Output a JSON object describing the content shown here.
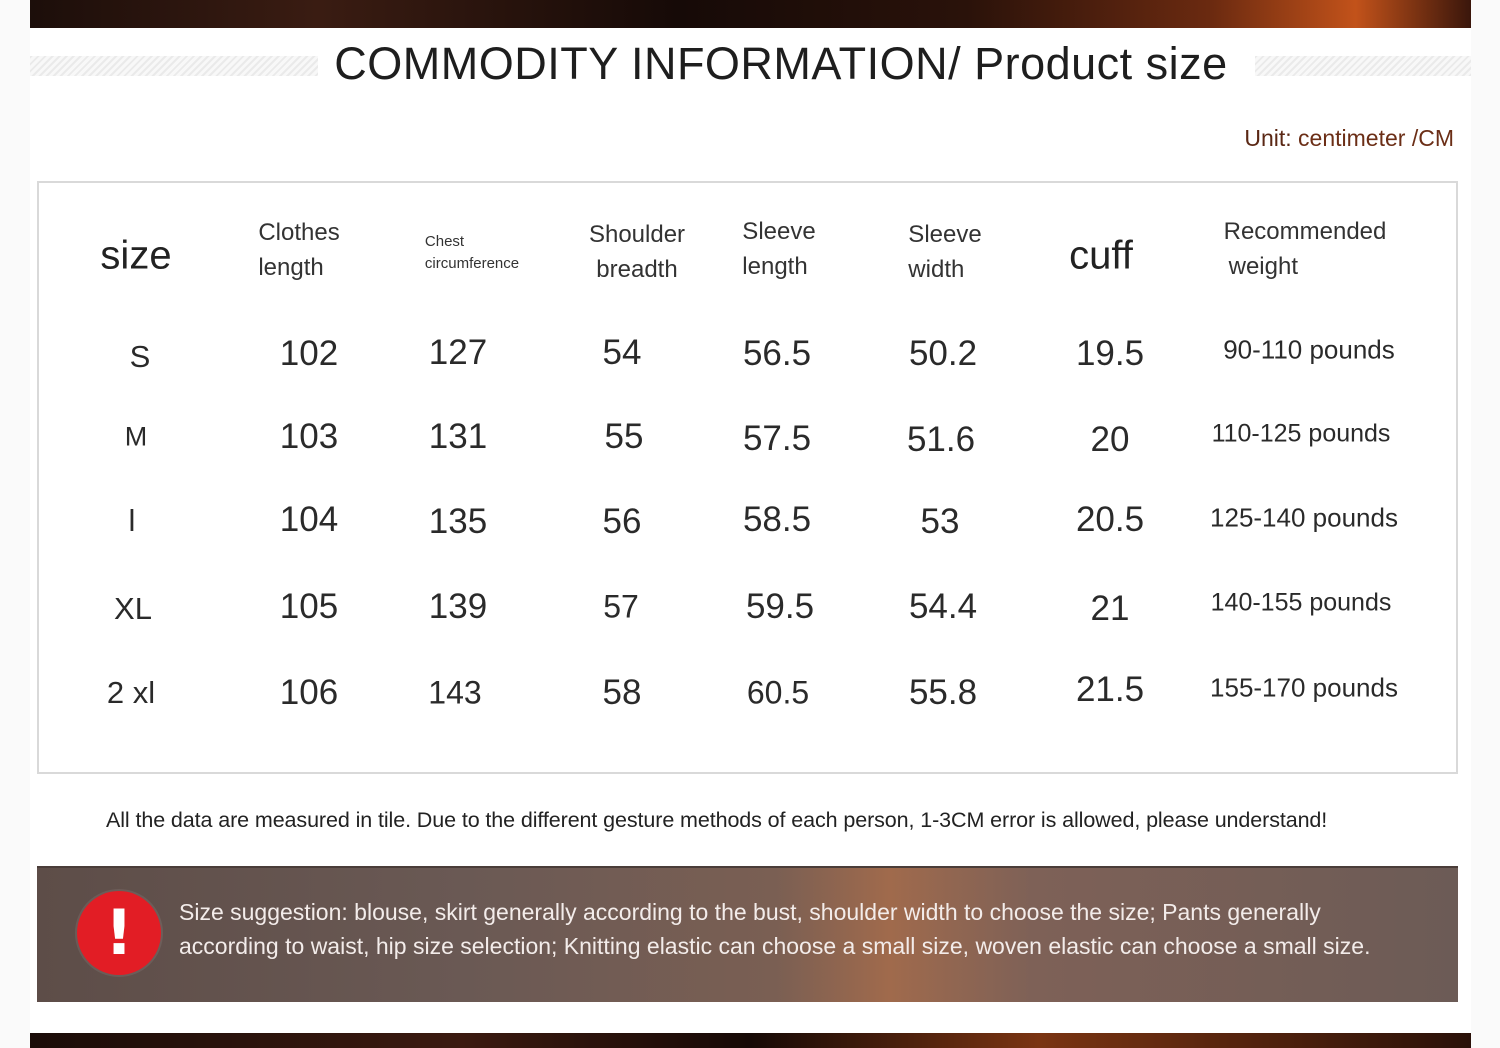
{
  "title": "COMMODITY INFORMATION/ Product size",
  "unit": {
    "label": "Unit:",
    "value": " centimeter /CM"
  },
  "headers": {
    "size": "size",
    "clothes_length": [
      "Clothes",
      "length"
    ],
    "chest": [
      "Chest",
      "circumference"
    ],
    "shoulder": [
      "Shoulder",
      "breadth"
    ],
    "sleeve_length": [
      "Sleeve",
      "length"
    ],
    "sleeve_width": [
      "Sleeve",
      "width"
    ],
    "cuff": "cuff",
    "weight": [
      "Recommended",
      "weight"
    ]
  },
  "rows": [
    {
      "size": "S",
      "clothes_length": "102",
      "chest": "127",
      "shoulder": "54",
      "sleeve_length": "56.5",
      "sleeve_width": "50.2",
      "cuff": "19.5",
      "weight": "90-110 pounds"
    },
    {
      "size": "M",
      "clothes_length": "103",
      "chest": "131",
      "shoulder": "55",
      "sleeve_length": "57.5",
      "sleeve_width": "51.6",
      "cuff": "20",
      "weight": "110-125 pounds"
    },
    {
      "size": "l",
      "clothes_length": "104",
      "chest": "135",
      "shoulder": "56",
      "sleeve_length": "58.5",
      "sleeve_width": "53",
      "cuff": "20.5",
      "weight": "125-140 pounds"
    },
    {
      "size": "XL",
      "clothes_length": "105",
      "chest": "139",
      "shoulder": "57",
      "sleeve_length": "59.5",
      "sleeve_width": "54.4",
      "cuff": "21",
      "weight": "140-155 pounds"
    },
    {
      "size": "2 xl",
      "clothes_length": "106",
      "chest": "143",
      "shoulder": "58",
      "sleeve_length": "60.5",
      "sleeve_width": "55.8",
      "cuff": "21.5",
      "weight": "155-170 pounds"
    }
  ],
  "note": "All the data are measured in tile. Due to the different gesture methods of each person, 1-3CM error is allowed, please understand!",
  "suggestion": {
    "icon": "exclamation-icon",
    "icon_glyph": "!",
    "text": "Size suggestion: blouse, skirt generally according to the bust, shoulder width to choose the size; Pants generally according to waist, hip size selection; Knitting elastic can choose a small size, woven elastic can choose a small size."
  },
  "colors": {
    "accent_red": "#e21d25",
    "unit_brown": "#6b2e16",
    "banner": "#6a5954"
  }
}
